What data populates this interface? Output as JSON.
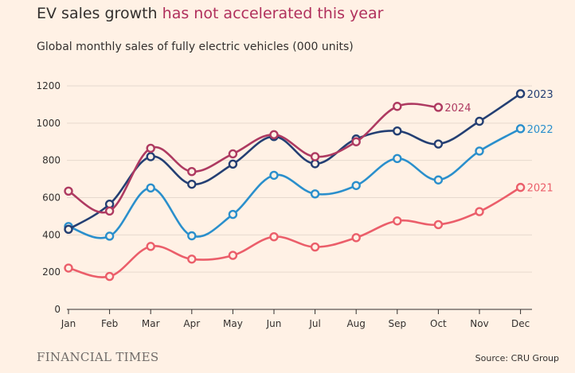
{
  "header": {
    "title_part1": "EV sales growth",
    "title_part2": "has not accelerated this year",
    "subtitle": "Global monthly sales of fully electric vehicles (000 units)"
  },
  "footer": {
    "brand": "FINANCIAL TIMES",
    "source": "Source: CRU Group"
  },
  "colors": {
    "background": "#fff1e5",
    "grid": "#e6d9ce",
    "title_accent": "#b0305c"
  },
  "chart_data": {
    "type": "line",
    "categories": [
      "Jan",
      "Feb",
      "Mar",
      "Apr",
      "May",
      "Jun",
      "Jul",
      "Aug",
      "Sep",
      "Oct",
      "Nov",
      "Dec"
    ],
    "ylim": [
      0,
      1200
    ],
    "yticks": [
      0,
      200,
      400,
      600,
      800,
      1000,
      1200
    ],
    "grid": true,
    "xlabel": "",
    "ylabel": "",
    "series": [
      {
        "name": "2021",
        "color": "#eb5e6a",
        "values": [
          222,
          177,
          338,
          270,
          290,
          390,
          335,
          385,
          475,
          455,
          525,
          655
        ]
      },
      {
        "name": "2022",
        "color": "#2a8fcc",
        "values": [
          445,
          393,
          652,
          395,
          510,
          720,
          620,
          665,
          810,
          695,
          850,
          970
        ]
      },
      {
        "name": "2023",
        "color": "#243f73",
        "values": [
          430,
          565,
          820,
          672,
          780,
          928,
          782,
          915,
          958,
          888,
          1010,
          1158
        ]
      },
      {
        "name": "2024",
        "color": "#ae3a61",
        "values": [
          635,
          528,
          865,
          740,
          835,
          938,
          820,
          900,
          1090,
          1085,
          null,
          null
        ]
      }
    ]
  }
}
